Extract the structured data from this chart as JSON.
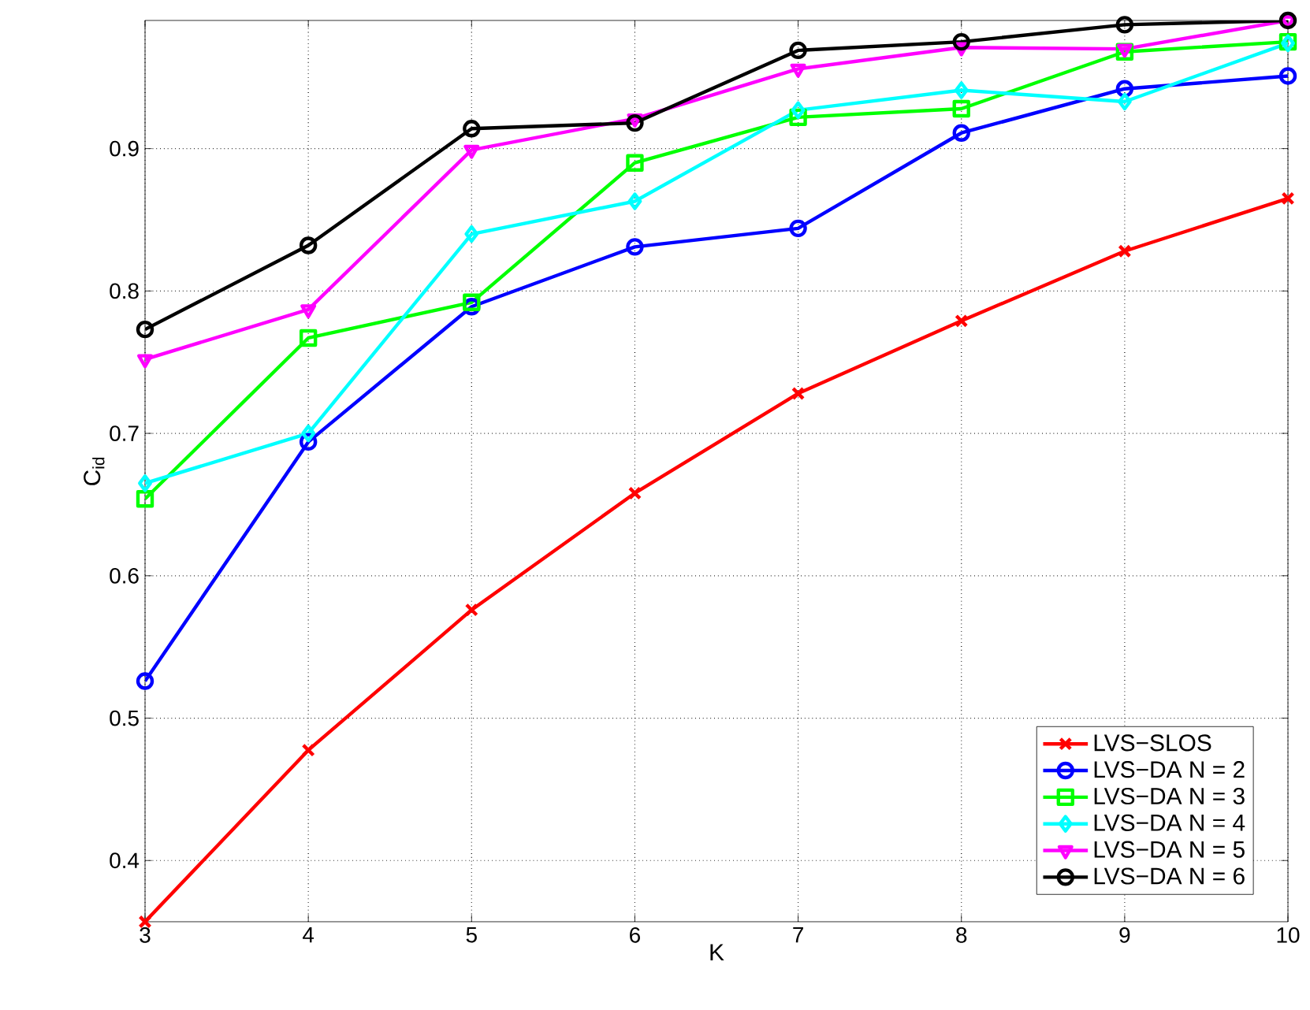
{
  "chart_data": {
    "type": "line",
    "xlabel": "K",
    "ylabel": "C$_{id}$",
    "x": [
      3,
      4,
      5,
      6,
      7,
      8,
      9,
      10
    ],
    "xlim": [
      3,
      10
    ],
    "ylim": [
      0.357,
      0.99
    ],
    "xticks": [
      3,
      4,
      5,
      6,
      7,
      8,
      9,
      10
    ],
    "yticks": [
      0.4,
      0.5,
      0.6,
      0.7,
      0.8,
      0.9
    ],
    "grid": true,
    "legend": "bottom right",
    "series": [
      {
        "name": "LVS−SLOS",
        "color": "#ff0000",
        "marker": "cross",
        "values": [
          0.357,
          0.4775,
          0.576,
          0.658,
          0.728,
          0.779,
          0.828,
          0.865
        ]
      },
      {
        "name": "LVS−DA N = 2",
        "color": "#0000ff",
        "marker": "circle",
        "values": [
          0.526,
          0.694,
          0.789,
          0.831,
          0.844,
          0.911,
          0.942,
          0.951
        ]
      },
      {
        "name": "LVS−DA N = 3",
        "color": "#00ff00",
        "marker": "square",
        "values": [
          0.654,
          0.767,
          0.792,
          0.89,
          0.922,
          0.928,
          0.968,
          0.975
        ]
      },
      {
        "name": "LVS−DA N = 4",
        "color": "#00ffff",
        "marker": "diamond",
        "values": [
          0.665,
          0.7,
          0.84,
          0.863,
          0.927,
          0.941,
          0.933,
          0.974
        ]
      },
      {
        "name": "LVS−DA N = 5",
        "color": "#ff00ff",
        "marker": "triangle",
        "values": [
          0.752,
          0.787,
          0.899,
          0.921,
          0.956,
          0.971,
          0.97,
          0.99
        ]
      },
      {
        "name": "LVS−DA N = 6",
        "color": "#000000",
        "marker": "circle",
        "values": [
          0.773,
          0.832,
          0.914,
          0.918,
          0.969,
          0.975,
          0.987,
          0.99
        ]
      }
    ]
  }
}
